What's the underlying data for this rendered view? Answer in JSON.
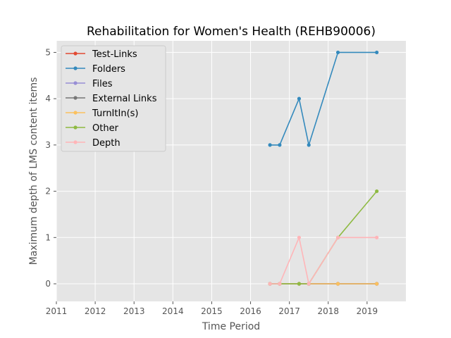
{
  "chart_data": {
    "type": "line",
    "title": "Rehabilitation for Women's Health (REHB90006)",
    "xlabel": "Time Period",
    "ylabel": "Maximum depth of LMS content items",
    "xlim": [
      2011,
      2020
    ],
    "ylim": [
      -0.38,
      5.25
    ],
    "xticks": [
      2011,
      2012,
      2013,
      2014,
      2015,
      2016,
      2017,
      2018,
      2019
    ],
    "yticks": [
      0,
      1,
      2,
      3,
      4,
      5
    ],
    "grid": true,
    "legend_position": "top-left",
    "x": [
      2016.5,
      2016.75,
      2017.25,
      2017.5,
      2018.25,
      2019.25
    ],
    "series": [
      {
        "name": "Test-Links",
        "color": "#e24a33",
        "values": [
          0,
          0,
          0,
          0,
          0,
          0
        ]
      },
      {
        "name": "Folders",
        "color": "#348abd",
        "values": [
          3,
          3,
          4,
          3,
          5,
          5
        ]
      },
      {
        "name": "Files",
        "color": "#988ed5",
        "values": [
          0,
          0,
          0,
          0,
          0,
          0
        ]
      },
      {
        "name": "External Links",
        "color": "#777777",
        "values": [
          0,
          0,
          0,
          0,
          0,
          0
        ]
      },
      {
        "name": "TurnItIn(s)",
        "color": "#fbc15e",
        "values": [
          0,
          0,
          0,
          0,
          0,
          0
        ]
      },
      {
        "name": "Other",
        "color": "#8eba42",
        "values": [
          0,
          0,
          0,
          0,
          1,
          2
        ]
      },
      {
        "name": "Depth",
        "color": "#ffb5b8",
        "values": [
          0,
          0,
          1,
          0,
          1,
          1
        ]
      }
    ]
  }
}
